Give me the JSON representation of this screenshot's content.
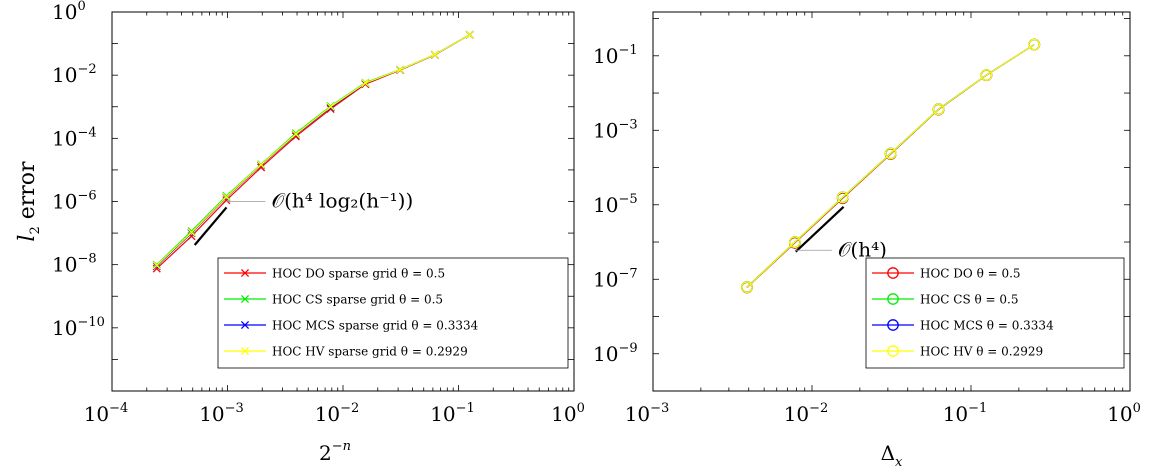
{
  "figure": {
    "charts": [
      {
        "type": "line",
        "xscale": "log",
        "yscale": "log",
        "xlim": [
          0.0001,
          1
        ],
        "ylim": [
          1e-12,
          1
        ],
        "xticks": [
          -4,
          -3,
          -2,
          -1,
          0
        ],
        "yticks": [
          -10,
          -8,
          -6,
          -4,
          -2,
          0
        ],
        "xlabel": "2^{-n}",
        "ylabel": "l_2 error",
        "legend_position": "bottom-right",
        "marker": "x",
        "series": [
          {
            "name": "HOC DO sparse grid θ = 0.5",
            "color": "#ff0000",
            "x": [
              0.000244,
              0.000488,
              0.000977,
              0.001953,
              0.003906,
              0.0078125,
              0.015625,
              0.03125,
              0.0625,
              0.125
            ],
            "y": [
              7.5e-09,
              8e-08,
              1.1e-06,
              1.2e-05,
              0.000115,
              0.00085,
              0.0052,
              0.0145,
              0.044,
              0.19
            ]
          },
          {
            "name": "HOC CS sparse grid θ = 0.5",
            "color": "#00ee00",
            "x": [
              0.000244,
              0.000488,
              0.000977,
              0.001953,
              0.003906,
              0.0078125,
              0.015625,
              0.03125,
              0.0625,
              0.125
            ],
            "y": [
              1e-08,
              1.15e-07,
              1.5e-06,
              1.5e-05,
              0.000145,
              0.00105,
              0.0058,
              0.015,
              0.045,
              0.19
            ]
          },
          {
            "name": "HOC MCS sparse grid θ = 0.3334",
            "color": "#0000ff",
            "x": [
              0.000244,
              0.000488,
              0.000977,
              0.001953,
              0.003906,
              0.0078125,
              0.015625,
              0.03125,
              0.0625,
              0.125
            ],
            "y": [
              9e-09,
              1e-07,
              1.35e-06,
              1.4e-05,
              0.00013,
              0.00095,
              0.0055,
              0.0148,
              0.0445,
              0.19
            ]
          },
          {
            "name": "HOC HV sparse grid θ = 0.2929",
            "color": "#ffff00",
            "x": [
              0.000244,
              0.000488,
              0.000977,
              0.001953,
              0.003906,
              0.0078125,
              0.015625,
              0.03125,
              0.0625,
              0.125
            ],
            "y": [
              9.5e-09,
              1.05e-07,
              1.4e-06,
              1.45e-05,
              0.000135,
              0.001,
              0.0056,
              0.0149,
              0.0448,
              0.19
            ]
          }
        ],
        "reference_line": {
          "label": "𝒪(h⁴ log₂(h⁻¹))",
          "x": [
            0.00052,
            0.00098
          ],
          "y": [
            4.2e-08,
            6.5e-07
          ]
        }
      },
      {
        "type": "line",
        "xscale": "log",
        "yscale": "log",
        "xlim": [
          0.001,
          1
        ],
        "ylim": [
          1e-10,
          1.5
        ],
        "xticks": [
          -3,
          -2,
          -1,
          0
        ],
        "yticks": [
          -9,
          -7,
          -5,
          -3,
          -1
        ],
        "xlabel": "Δ_x",
        "ylabel": "",
        "legend_position": "bottom-right",
        "marker": "o",
        "series": [
          {
            "name": "HOC DO θ = 0.5",
            "color": "#ff0000",
            "x": [
              0.0039,
              0.0078,
              0.0156,
              0.03125,
              0.0625,
              0.125,
              0.25
            ],
            "y": [
              6e-08,
              9.5e-07,
              1.5e-05,
              0.00023,
              0.0036,
              0.03,
              0.2
            ]
          },
          {
            "name": "HOC CS θ = 0.5",
            "color": "#00ee00",
            "x": [
              0.0039,
              0.0078,
              0.0156,
              0.03125,
              0.0625,
              0.125,
              0.25
            ],
            "y": [
              6.2e-08,
              1e-06,
              1.6e-05,
              0.00024,
              0.0037,
              0.0305,
              0.2
            ]
          },
          {
            "name": "HOC MCS θ = 0.3334",
            "color": "#0000ff",
            "x": [
              0.0039,
              0.0078,
              0.0156,
              0.03125,
              0.0625,
              0.125,
              0.25
            ],
            "y": [
              6.1e-08,
              9.8e-07,
              1.55e-05,
              0.000235,
              0.00365,
              0.0302,
              0.2
            ]
          },
          {
            "name": "HOC HV θ = 0.2929",
            "color": "#ffff00",
            "x": [
              0.0039,
              0.0078,
              0.0156,
              0.03125,
              0.0625,
              0.125,
              0.25
            ],
            "y": [
              6.1e-08,
              9.9e-07,
              1.57e-05,
              0.000237,
              0.00366,
              0.0303,
              0.2
            ]
          }
        ],
        "reference_line": {
          "label": "𝒪(h⁴)",
          "x": [
            0.0079,
            0.0158
          ],
          "y": [
            5.5e-07,
            8.8e-06
          ]
        }
      }
    ]
  },
  "chart_data": [
    {
      "type": "line",
      "xlabel": "2^{-n}",
      "ylabel": "l_2 error",
      "x": [
        0.000244,
        0.000488,
        0.000977,
        0.001953,
        0.003906,
        0.0078125,
        0.015625,
        0.03125,
        0.0625,
        0.125
      ],
      "series": [
        {
          "name": "HOC DO sparse grid θ = 0.5",
          "values": [
            7.5e-09,
            8e-08,
            1.1e-06,
            1.2e-05,
            0.000115,
            0.00085,
            0.0052,
            0.0145,
            0.044,
            0.19
          ]
        },
        {
          "name": "HOC CS sparse grid θ = 0.5",
          "values": [
            1e-08,
            1.15e-07,
            1.5e-06,
            1.5e-05,
            0.000145,
            0.00105,
            0.0058,
            0.015,
            0.045,
            0.19
          ]
        },
        {
          "name": "HOC MCS sparse grid θ = 0.3334",
          "values": [
            9e-09,
            1e-07,
            1.35e-06,
            1.4e-05,
            0.00013,
            0.00095,
            0.0055,
            0.0148,
            0.0445,
            0.19
          ]
        },
        {
          "name": "HOC HV sparse grid θ = 0.2929",
          "values": [
            9.5e-09,
            1.05e-07,
            1.4e-06,
            1.45e-05,
            0.000135,
            0.001,
            0.0056,
            0.0149,
            0.0448,
            0.19
          ]
        }
      ],
      "xscale": "log",
      "yscale": "log",
      "xlim": [
        0.0001,
        1
      ],
      "ylim": [
        1e-12,
        1
      ],
      "legend_position": "bottom-right",
      "annotation": "𝒪(h⁴ log₂(h⁻¹))"
    },
    {
      "type": "line",
      "xlabel": "Δ_x",
      "ylabel": "",
      "x": [
        0.0039,
        0.0078,
        0.0156,
        0.03125,
        0.0625,
        0.125,
        0.25
      ],
      "series": [
        {
          "name": "HOC DO θ = 0.5",
          "values": [
            6e-08,
            9.5e-07,
            1.5e-05,
            0.00023,
            0.0036,
            0.03,
            0.2
          ]
        },
        {
          "name": "HOC CS θ = 0.5",
          "values": [
            6.2e-08,
            1e-06,
            1.6e-05,
            0.00024,
            0.0037,
            0.0305,
            0.2
          ]
        },
        {
          "name": "HOC MCS θ = 0.3334",
          "values": [
            6.1e-08,
            9.8e-07,
            1.55e-05,
            0.000235,
            0.00365,
            0.0302,
            0.2
          ]
        },
        {
          "name": "HOC HV θ = 0.2929",
          "values": [
            6.1e-08,
            9.9e-07,
            1.57e-05,
            0.000237,
            0.00366,
            0.0303,
            0.2
          ]
        }
      ],
      "xscale": "log",
      "yscale": "log",
      "xlim": [
        0.001,
        1
      ],
      "ylim": [
        1e-10,
        1.5
      ],
      "legend_position": "bottom-right",
      "annotation": "𝒪(h⁴)"
    }
  ]
}
